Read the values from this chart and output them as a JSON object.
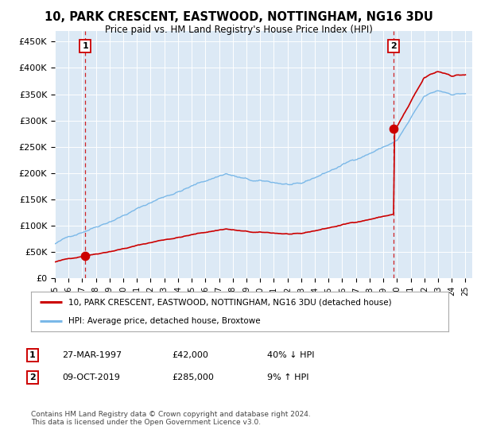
{
  "title": "10, PARK CRESCENT, EASTWOOD, NOTTINGHAM, NG16 3DU",
  "subtitle": "Price paid vs. HM Land Registry's House Price Index (HPI)",
  "legend_line1": "10, PARK CRESCENT, EASTWOOD, NOTTINGHAM, NG16 3DU (detached house)",
  "legend_line2": "HPI: Average price, detached house, Broxtowe",
  "table_row1": [
    "1",
    "27-MAR-1997",
    "£42,000",
    "40% ↓ HPI"
  ],
  "table_row2": [
    "2",
    "09-OCT-2019",
    "£285,000",
    "9% ↑ HPI"
  ],
  "footnote": "Contains HM Land Registry data © Crown copyright and database right 2024.\nThis data is licensed under the Open Government Licence v3.0.",
  "point1_year": 1997.23,
  "point1_value": 42000,
  "point2_year": 2019.77,
  "point2_value": 285000,
  "hpi_color": "#7ab8e8",
  "price_color": "#cc0000",
  "plot_bg": "#dce9f5",
  "ylim_max": 470000,
  "yticks": [
    0,
    50000,
    100000,
    150000,
    200000,
    250000,
    300000,
    350000,
    400000,
    450000
  ],
  "xstart": 1995.0,
  "xend": 2025.5
}
